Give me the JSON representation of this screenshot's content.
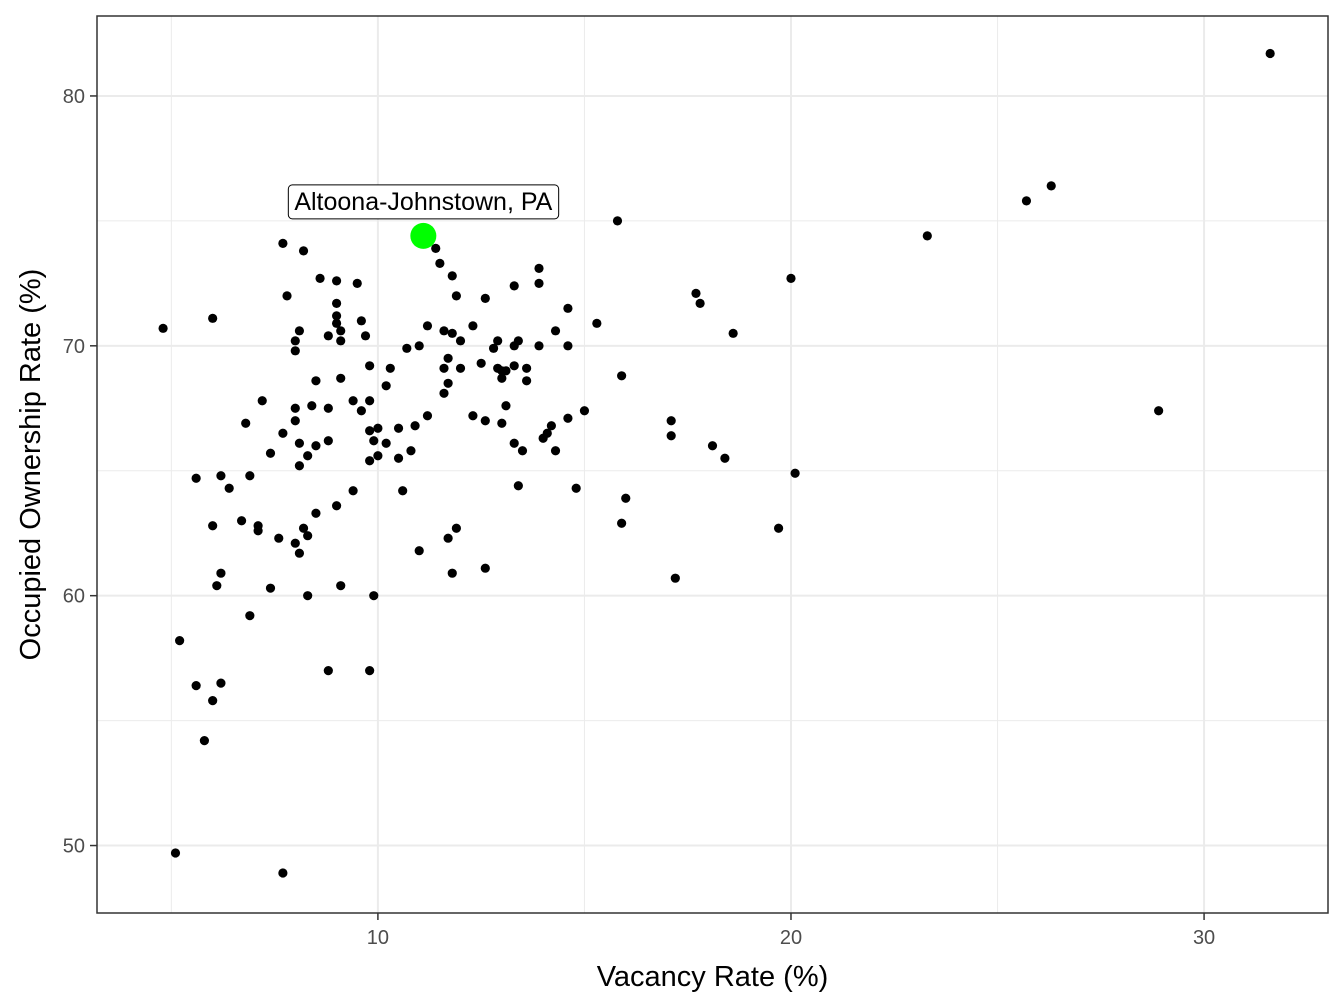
{
  "chart_data": {
    "type": "scatter",
    "xlabel": "Vacancy Rate (%)",
    "ylabel": "Occupied Ownership Rate (%)",
    "xlim": [
      3.2,
      33.0
    ],
    "ylim": [
      47.3,
      83.2
    ],
    "x_ticks": [
      10,
      20,
      30
    ],
    "y_ticks": [
      50,
      60,
      70,
      80
    ],
    "grid": true,
    "point_color": "#000000",
    "highlight": {
      "label": "Altoona-Johnstown, PA",
      "x": 11.1,
      "y": 74.4,
      "color": "#00ff00"
    },
    "points": [
      [
        31.6,
        81.7
      ],
      [
        26.3,
        76.4
      ],
      [
        25.7,
        75.8
      ],
      [
        23.3,
        74.4
      ],
      [
        20.0,
        72.7
      ],
      [
        28.9,
        67.4
      ],
      [
        18.6,
        70.5
      ],
      [
        17.7,
        72.1
      ],
      [
        17.8,
        71.7
      ],
      [
        15.8,
        75.0
      ],
      [
        20.1,
        64.9
      ],
      [
        19.7,
        62.7
      ],
      [
        18.1,
        66.0
      ],
      [
        18.4,
        65.5
      ],
      [
        17.1,
        67.0
      ],
      [
        17.1,
        66.4
      ],
      [
        17.2,
        60.7
      ],
      [
        15.3,
        70.9
      ],
      [
        15.9,
        68.8
      ],
      [
        16.0,
        63.9
      ],
      [
        15.9,
        62.9
      ],
      [
        15.0,
        67.4
      ],
      [
        14.6,
        71.5
      ],
      [
        14.6,
        70.0
      ],
      [
        14.6,
        67.1
      ],
      [
        14.8,
        64.3
      ],
      [
        14.3,
        70.6
      ],
      [
        14.2,
        66.8
      ],
      [
        14.3,
        65.8
      ],
      [
        14.1,
        66.5
      ],
      [
        14.0,
        66.3
      ],
      [
        13.9,
        73.1
      ],
      [
        13.9,
        72.5
      ],
      [
        13.9,
        70.0
      ],
      [
        13.6,
        69.1
      ],
      [
        13.6,
        68.6
      ],
      [
        13.5,
        65.8
      ],
      [
        13.4,
        70.2
      ],
      [
        13.3,
        70.0
      ],
      [
        13.3,
        72.4
      ],
      [
        13.3,
        69.2
      ],
      [
        13.3,
        66.1
      ],
      [
        13.4,
        64.4
      ],
      [
        13.1,
        69.0
      ],
      [
        13.0,
        68.7
      ],
      [
        13.0,
        66.9
      ],
      [
        13.1,
        67.6
      ],
      [
        12.9,
        70.2
      ],
      [
        12.8,
        69.9
      ],
      [
        12.9,
        69.1
      ],
      [
        13.0,
        69.0
      ],
      [
        12.6,
        71.9
      ],
      [
        12.6,
        67.0
      ],
      [
        12.6,
        61.1
      ],
      [
        12.5,
        69.3
      ],
      [
        12.3,
        70.8
      ],
      [
        12.3,
        67.2
      ],
      [
        12.0,
        70.2
      ],
      [
        12.0,
        69.1
      ],
      [
        11.9,
        72.0
      ],
      [
        11.8,
        72.8
      ],
      [
        11.8,
        70.5
      ],
      [
        11.7,
        69.5
      ],
      [
        11.7,
        68.5
      ],
      [
        11.6,
        69.1
      ],
      [
        11.6,
        68.1
      ],
      [
        11.5,
        73.3
      ],
      [
        11.4,
        73.9
      ],
      [
        11.6,
        70.6
      ],
      [
        11.9,
        62.7
      ],
      [
        11.7,
        62.3
      ],
      [
        11.8,
        60.9
      ],
      [
        11.2,
        70.8
      ],
      [
        11.2,
        67.2
      ],
      [
        11.0,
        70.0
      ],
      [
        10.9,
        66.8
      ],
      [
        10.8,
        65.8
      ],
      [
        10.7,
        69.9
      ],
      [
        10.6,
        64.2
      ],
      [
        10.5,
        66.7
      ],
      [
        10.5,
        65.5
      ],
      [
        11.0,
        61.8
      ],
      [
        10.3,
        69.1
      ],
      [
        10.2,
        68.4
      ],
      [
        10.2,
        66.1
      ],
      [
        10.0,
        66.7
      ],
      [
        10.0,
        65.6
      ],
      [
        9.9,
        66.2
      ],
      [
        9.9,
        60.0
      ],
      [
        9.8,
        69.2
      ],
      [
        9.8,
        67.8
      ],
      [
        9.8,
        66.6
      ],
      [
        9.8,
        65.4
      ],
      [
        9.7,
        70.4
      ],
      [
        9.6,
        71.0
      ],
      [
        9.6,
        67.4
      ],
      [
        9.5,
        72.5
      ],
      [
        9.4,
        67.8
      ],
      [
        9.4,
        64.2
      ],
      [
        9.8,
        57.0
      ],
      [
        9.0,
        72.6
      ],
      [
        9.0,
        71.7
      ],
      [
        9.0,
        71.2
      ],
      [
        9.0,
        70.9
      ],
      [
        9.1,
        70.6
      ],
      [
        9.1,
        70.2
      ],
      [
        9.1,
        68.7
      ],
      [
        9.0,
        63.6
      ],
      [
        9.1,
        60.4
      ],
      [
        8.8,
        70.4
      ],
      [
        8.8,
        67.5
      ],
      [
        8.8,
        66.2
      ],
      [
        8.8,
        57.0
      ],
      [
        8.6,
        72.7
      ],
      [
        8.5,
        68.6
      ],
      [
        8.5,
        66.0
      ],
      [
        8.5,
        63.3
      ],
      [
        8.4,
        67.6
      ],
      [
        8.3,
        65.6
      ],
      [
        8.3,
        62.4
      ],
      [
        8.3,
        60.0
      ],
      [
        8.2,
        73.8
      ],
      [
        8.1,
        70.6
      ],
      [
        8.1,
        66.1
      ],
      [
        8.2,
        62.7
      ],
      [
        8.0,
        70.2
      ],
      [
        8.0,
        69.8
      ],
      [
        8.0,
        67.5
      ],
      [
        8.0,
        67.0
      ],
      [
        8.1,
        65.2
      ],
      [
        8.0,
        62.1
      ],
      [
        8.1,
        61.7
      ],
      [
        7.7,
        74.1
      ],
      [
        7.8,
        72.0
      ],
      [
        7.7,
        66.5
      ],
      [
        7.6,
        62.3
      ],
      [
        7.7,
        48.9
      ],
      [
        7.4,
        65.7
      ],
      [
        7.4,
        60.3
      ],
      [
        7.2,
        67.8
      ],
      [
        7.1,
        62.6
      ],
      [
        7.1,
        62.8
      ],
      [
        6.9,
        64.8
      ],
      [
        6.9,
        59.2
      ],
      [
        6.8,
        66.9
      ],
      [
        6.7,
        63.0
      ],
      [
        6.4,
        64.3
      ],
      [
        6.2,
        64.8
      ],
      [
        6.2,
        60.9
      ],
      [
        6.2,
        56.5
      ],
      [
        6.1,
        60.4
      ],
      [
        6.0,
        71.1
      ],
      [
        6.0,
        62.8
      ],
      [
        6.0,
        55.8
      ],
      [
        5.8,
        54.2
      ],
      [
        5.6,
        64.7
      ],
      [
        5.6,
        56.4
      ],
      [
        5.2,
        58.2
      ],
      [
        5.1,
        49.7
      ],
      [
        4.8,
        70.7
      ]
    ]
  }
}
